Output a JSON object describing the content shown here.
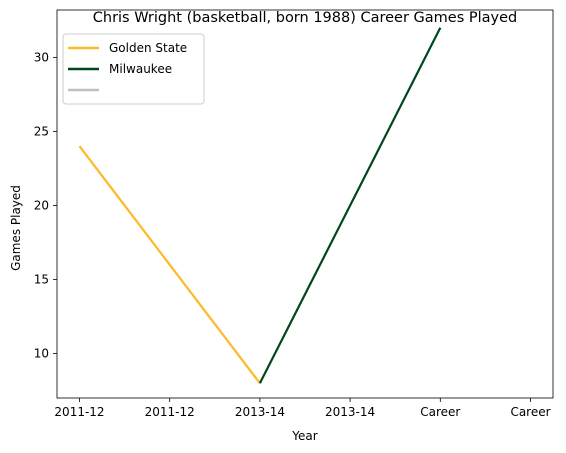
{
  "chart_data": {
    "type": "line",
    "title": "Chris Wright (basketball, born 1988) Career Games Played",
    "xlabel": "Year",
    "ylabel": "Games Played",
    "x_ticks": [
      "2011-12",
      "2011-12",
      "2013-14",
      "2013-14",
      "Career",
      "Career"
    ],
    "y_ticks": [
      10,
      15,
      20,
      25,
      30
    ],
    "ylim": [
      7,
      33.2
    ],
    "legend": "top-left",
    "grid": false,
    "series": [
      {
        "name": "Golden State",
        "color": "#FDB927",
        "points": [
          [
            0,
            24
          ],
          [
            2,
            8
          ]
        ]
      },
      {
        "name": "Milwaukee",
        "color": "#00471B",
        "points": [
          [
            2,
            8
          ],
          [
            4,
            32
          ]
        ]
      },
      {
        "name": "",
        "color": "#C0C0C0",
        "points": []
      }
    ]
  }
}
